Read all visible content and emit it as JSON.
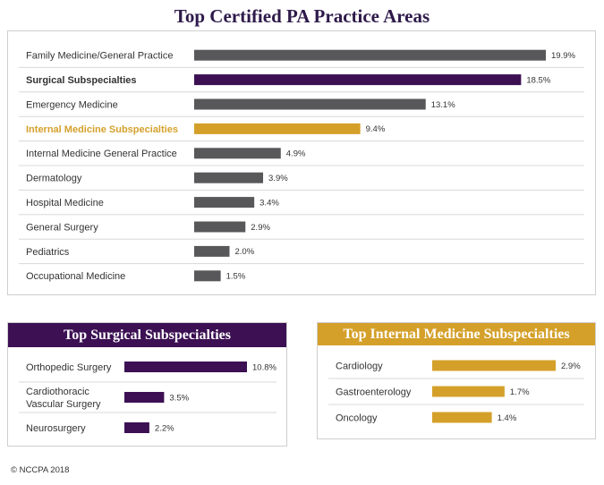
{
  "title": "Top Certified PA Practice Areas",
  "footer": "© NCCPA 2018",
  "colors": {
    "gray": "#58585a",
    "purple": "#3c1053",
    "gold": "#d4a02a",
    "label": "#333333",
    "divider": "#d8d8d8"
  },
  "chart_data": [
    {
      "type": "bar",
      "orientation": "horizontal",
      "title": "Top Certified PA Practice Areas",
      "categories": [
        "Family Medicine/General Practice",
        "Surgical Subspecialties",
        "Emergency Medicine",
        "Internal Medicine Subspecialties",
        "Internal Medicine General Practice",
        "Dermatology",
        "Hospital Medicine",
        "General Surgery",
        "Pediatrics",
        "Occupational Medicine"
      ],
      "values": [
        19.9,
        18.5,
        13.1,
        9.4,
        4.9,
        3.9,
        3.4,
        2.9,
        2.0,
        1.5
      ],
      "value_labels": [
        "19.9%",
        "18.5%",
        "13.1%",
        "9.4%",
        "4.9%",
        "3.9%",
        "3.4%",
        "2.9%",
        "2.0%",
        "1.5%"
      ],
      "highlight": {
        "Surgical Subspecialties": "purple",
        "Internal Medicine Subspecialties": "gold"
      },
      "unit": "%",
      "xlim": [
        0,
        19.9
      ],
      "grid": false,
      "legend": "none"
    },
    {
      "type": "bar",
      "orientation": "horizontal",
      "title": "Top Surgical Subspecialties",
      "categories": [
        "Orthopedic Surgery",
        "Cardiothoracic Vascular Surgery",
        "Neurosurgery"
      ],
      "category_lines": [
        [
          "Orthopedic Surgery"
        ],
        [
          "Cardiothoracic",
          "Vascular Surgery"
        ],
        [
          "Neurosurgery"
        ]
      ],
      "values": [
        10.8,
        3.5,
        2.2
      ],
      "value_labels": [
        "10.8%",
        "3.5%",
        "2.2%"
      ],
      "color": "purple",
      "unit": "%",
      "xlim": [
        0,
        10.8
      ],
      "grid": false,
      "legend": "none"
    },
    {
      "type": "bar",
      "orientation": "horizontal",
      "title": "Top Internal Medicine Subspecialties",
      "categories": [
        "Cardiology",
        "Gastroenterology",
        "Oncology"
      ],
      "category_lines": [
        [
          "Cardiology"
        ],
        [
          "Gastroenterology"
        ],
        [
          "Oncology"
        ]
      ],
      "values": [
        2.9,
        1.7,
        1.4
      ],
      "value_labels": [
        "2.9%",
        "1.7%",
        "1.4%"
      ],
      "color": "gold",
      "unit": "%",
      "xlim": [
        0,
        2.9
      ],
      "grid": false,
      "legend": "none"
    }
  ]
}
